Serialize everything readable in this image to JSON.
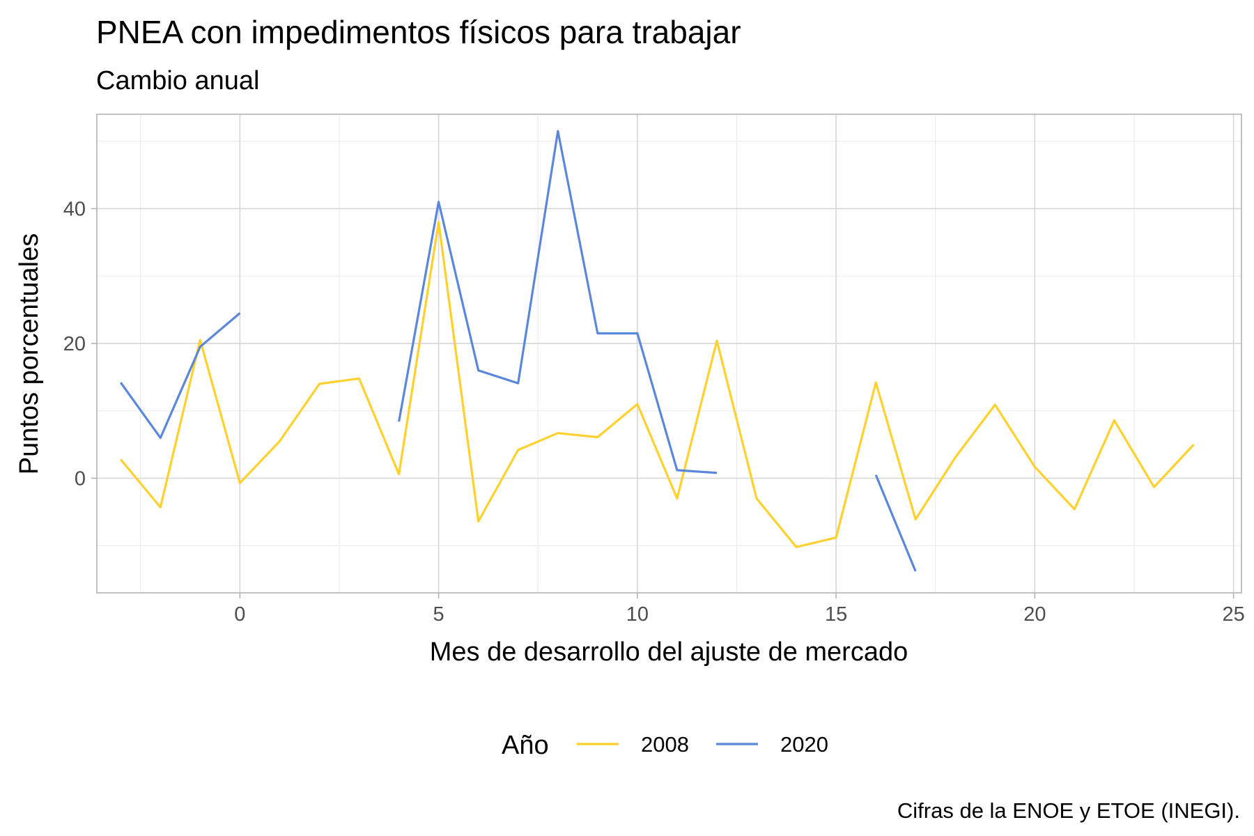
{
  "chart_data": {
    "type": "line",
    "title": "PNEA con impedimentos físicos para trabajar",
    "subtitle": "Cambio anual",
    "xlabel": "Mes de desarrollo del ajuste de mercado",
    "ylabel": "Puntos porcentuales",
    "caption": "Cifras de la ENOE y ETOE (INEGI).",
    "legend_title": "Año",
    "legend_position": "bottom",
    "grid": true,
    "xlim": [
      -3.6,
      25.2
    ],
    "ylim": [
      -17,
      54
    ],
    "x_ticks": [
      0,
      5,
      10,
      15,
      20,
      25
    ],
    "y_ticks": [
      0,
      20,
      40
    ],
    "series": [
      {
        "name": "2008",
        "color": "#FFD12E",
        "segments": [
          [
            [
              -3,
              2.8
            ],
            [
              -2,
              -4.3
            ],
            [
              -1,
              20.5
            ],
            [
              0,
              -0.7
            ],
            [
              1,
              5.5
            ],
            [
              2,
              14.0
            ],
            [
              3,
              14.8
            ],
            [
              4,
              0.6
            ],
            [
              5,
              38.0
            ],
            [
              6,
              -6.4
            ],
            [
              7,
              4.2
            ],
            [
              8,
              6.7
            ],
            [
              9,
              6.1
            ],
            [
              10,
              11.0
            ],
            [
              11,
              -3.0
            ],
            [
              12,
              20.4
            ],
            [
              13,
              -3.0
            ],
            [
              14,
              -10.2
            ],
            [
              15,
              -8.8
            ],
            [
              16,
              14.2
            ],
            [
              17,
              -6.1
            ],
            [
              18,
              3.1
            ],
            [
              19,
              10.9
            ],
            [
              20,
              1.7
            ],
            [
              21,
              -4.6
            ],
            [
              22,
              8.6
            ],
            [
              23,
              -1.3
            ],
            [
              24,
              5.0
            ]
          ]
        ]
      },
      {
        "name": "2020",
        "color": "#5B87DB",
        "segments": [
          [
            [
              -3,
              14.2
            ],
            [
              -2,
              6.0
            ],
            [
              -1,
              19.5
            ],
            [
              0,
              24.5
            ]
          ],
          [
            [
              4,
              8.4
            ],
            [
              5,
              41.0
            ],
            [
              6,
              16.0
            ],
            [
              7,
              14.1
            ],
            [
              8,
              51.5
            ],
            [
              9,
              21.5
            ],
            [
              10,
              21.5
            ],
            [
              11,
              1.2
            ],
            [
              12,
              0.8
            ]
          ],
          [
            [
              16,
              0.5
            ],
            [
              17,
              -13.8
            ]
          ]
        ]
      }
    ]
  }
}
